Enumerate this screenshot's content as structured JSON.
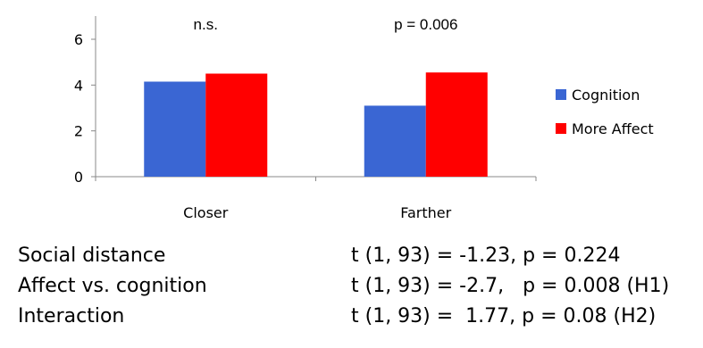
{
  "chart_data": {
    "type": "bar",
    "categories": [
      "Closer",
      "Farther"
    ],
    "series": [
      {
        "name": "Cognition",
        "values": [
          4.15,
          3.1
        ],
        "color": "#3a66d3"
      },
      {
        "name": "More Affect",
        "values": [
          4.5,
          4.55
        ],
        "color": "#ff0000"
      }
    ],
    "ylim": [
      0,
      6
    ],
    "yticks": [
      "0",
      "2",
      "4",
      "6"
    ],
    "ytick_values": [
      0,
      2,
      4,
      6
    ],
    "annotations": [
      "n.s.",
      "p = 0.006"
    ],
    "grid": false,
    "legend_placement": "right"
  },
  "stats": [
    {
      "label": "Social distance",
      "value": "t (1, 93) = -1.23, p = 0.224"
    },
    {
      "label": "Affect vs. cognition",
      "value": "t (1, 93) = -2.7,   p = 0.008 (H1)"
    },
    {
      "label": "Interaction",
      "value": "t (1, 93) =  1.77, p = 0.08 (H2)"
    }
  ]
}
